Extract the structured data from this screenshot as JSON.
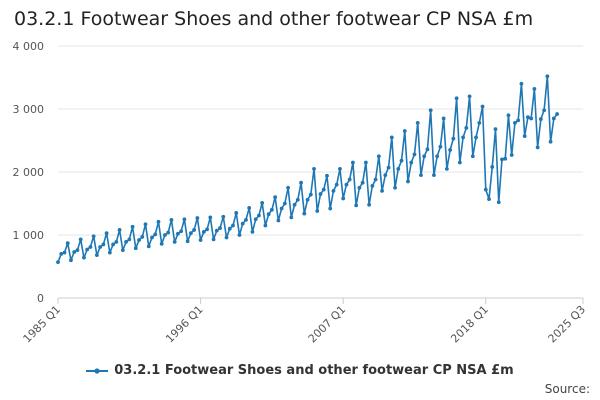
{
  "header": {
    "title": "03.2.1 Footwear Shoes and other footwear CP NSA £m"
  },
  "footer": {
    "source_label": "Source:"
  },
  "chart_data": {
    "type": "line",
    "title": "03.2.1 Footwear Shoes and other footwear CP NSA £m",
    "xlabel": "",
    "ylabel": "",
    "ylim": [
      0,
      4000
    ],
    "y_ticks": [
      0,
      1000,
      2000,
      3000,
      4000
    ],
    "y_tick_labels": [
      "0",
      "1 000",
      "2 000",
      "3 000",
      "4 000"
    ],
    "x_tick_labels": [
      "1985 Q1",
      "1996 Q1",
      "2007 Q1",
      "2018 Q1",
      "2025 Q3"
    ],
    "x_tick_index": [
      0,
      44,
      88,
      132,
      162
    ],
    "grid": true,
    "legend_position": "bottom",
    "colors": {
      "series": "#1f77b4",
      "grid": "#e6e6e6",
      "axis": "#cccccc"
    },
    "series": [
      {
        "name": "03.2.1 Footwear Shoes and other footwear CP NSA £m",
        "x_start": "1985 Q1",
        "frequency": "quarterly",
        "values": [
          570,
          700,
          720,
          870,
          600,
          730,
          760,
          930,
          640,
          770,
          810,
          980,
          680,
          810,
          850,
          1030,
          720,
          850,
          890,
          1080,
          760,
          890,
          930,
          1130,
          790,
          920,
          970,
          1170,
          820,
          960,
          1010,
          1210,
          860,
          1000,
          1040,
          1240,
          890,
          1020,
          1060,
          1250,
          900,
          1030,
          1080,
          1270,
          920,
          1050,
          1090,
          1280,
          930,
          1070,
          1110,
          1290,
          960,
          1100,
          1150,
          1350,
          1000,
          1180,
          1240,
          1430,
          1050,
          1250,
          1310,
          1510,
          1150,
          1330,
          1400,
          1600,
          1230,
          1420,
          1500,
          1750,
          1280,
          1480,
          1560,
          1830,
          1340,
          1560,
          1640,
          2050,
          1380,
          1650,
          1720,
          1940,
          1420,
          1700,
          1800,
          2050,
          1580,
          1800,
          1880,
          2150,
          1470,
          1750,
          1830,
          2150,
          1480,
          1780,
          1880,
          2250,
          1700,
          1950,
          2070,
          2550,
          1750,
          2050,
          2180,
          2650,
          1850,
          2150,
          2280,
          2780,
          1950,
          2250,
          2360,
          2980,
          1950,
          2250,
          2400,
          2850,
          2050,
          2350,
          2530,
          3170,
          2150,
          2550,
          2700,
          3200,
          2250,
          2550,
          2780,
          3040,
          1720,
          1570,
          2080,
          2680,
          1520,
          2200,
          2210,
          2900,
          2270,
          2780,
          2820,
          3400,
          2570,
          2870,
          2850,
          3320,
          2390,
          2840,
          2980,
          3520,
          2480,
          2850,
          2920
        ]
      }
    ]
  }
}
